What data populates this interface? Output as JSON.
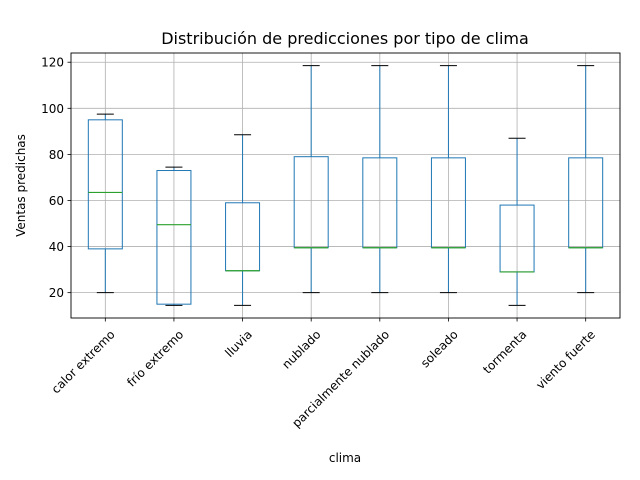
{
  "chart_data": {
    "type": "box",
    "title": "Distribución de predicciones por tipo de clima",
    "xlabel": "clima",
    "ylabel": "Ventas predichas",
    "ylim": [
      9,
      124
    ],
    "yticks": [
      20,
      40,
      60,
      80,
      100,
      120
    ],
    "grid": true,
    "colors": {
      "box": "#1f77b4",
      "median": "#2ca02c",
      "whisker": "#1f77b4",
      "cap": "#000000",
      "grid": "#b0b0b0",
      "axes": "#000000"
    },
    "categories": [
      "calor extremo",
      "frío extremo",
      "lluvia",
      "nublado",
      "parcialmente nublado",
      "soleado",
      "tormenta",
      "viento fuerte"
    ],
    "boxes": [
      {
        "min": 20,
        "q1": 39,
        "median": 63.5,
        "q3": 95,
        "max": 97.5
      },
      {
        "min": 14.5,
        "q1": 15,
        "median": 49.5,
        "q3": 73,
        "max": 74.5
      },
      {
        "min": 14.5,
        "q1": 29.5,
        "median": 29.5,
        "q3": 59,
        "max": 88.5
      },
      {
        "min": 20,
        "q1": 39.5,
        "median": 39.5,
        "q3": 79,
        "max": 118.5
      },
      {
        "min": 20,
        "q1": 39.5,
        "median": 39.5,
        "q3": 78.5,
        "max": 118.5
      },
      {
        "min": 20,
        "q1": 39.5,
        "median": 39.5,
        "q3": 78.5,
        "max": 118.5
      },
      {
        "min": 14.5,
        "q1": 29,
        "median": 29,
        "q3": 58,
        "max": 87
      },
      {
        "min": 20,
        "q1": 39.5,
        "median": 39.5,
        "q3": 78.5,
        "max": 118.5
      }
    ]
  }
}
